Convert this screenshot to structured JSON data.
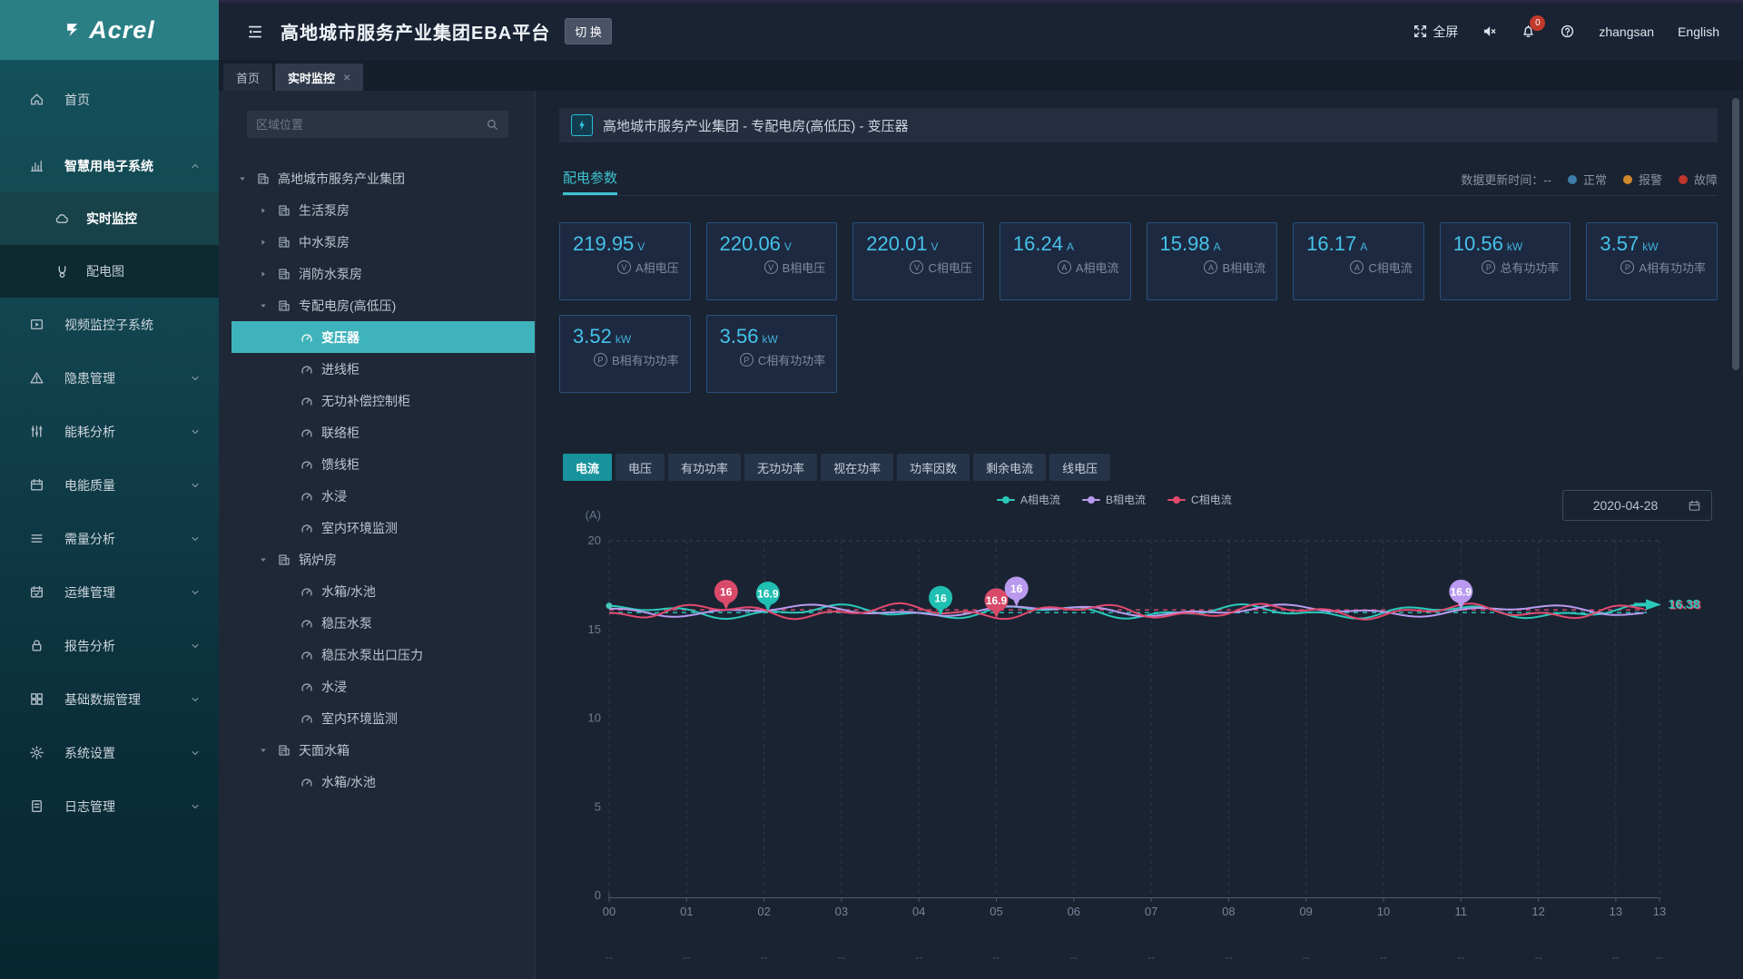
{
  "header": {
    "logo": "Acrel",
    "title": "高地城市服务产业集团EBA平台",
    "switch_button": "切 换",
    "fullscreen_label": "全屏",
    "notification_count": "0",
    "username": "zhangsan",
    "language": "English"
  },
  "top_tabs": [
    {
      "label": "首页",
      "active": false,
      "closable": false
    },
    {
      "label": "实时监控",
      "active": true,
      "closable": true
    }
  ],
  "sidebar": {
    "items": [
      {
        "label": "首页",
        "icon": "home-icon"
      },
      {
        "label": "智慧用电子系统",
        "icon": "chart-icon",
        "expanded": true,
        "children": [
          {
            "label": "实时监控",
            "icon": "cloud-icon",
            "selected": true
          },
          {
            "label": "配电图",
            "icon": "branch-icon",
            "selected": false
          }
        ]
      },
      {
        "label": "视频监控子系统",
        "icon": "video-icon"
      },
      {
        "label": "隐患管理",
        "icon": "warning-icon",
        "chevron": "down"
      },
      {
        "label": "能耗分析",
        "icon": "sliders-icon",
        "chevron": "down"
      },
      {
        "label": "电能质量",
        "icon": "calendar-icon",
        "chevron": "down"
      },
      {
        "label": "需量分析",
        "icon": "list-icon",
        "chevron": "down"
      },
      {
        "label": "运维管理",
        "icon": "calendar2-icon",
        "chevron": "down"
      },
      {
        "label": "报告分析",
        "icon": "lock-icon",
        "chevron": "down"
      },
      {
        "label": "基础数据管理",
        "icon": "grid-icon",
        "chevron": "down"
      },
      {
        "label": "系统设置",
        "icon": "gear-icon",
        "chevron": "down"
      },
      {
        "label": "日志管理",
        "icon": "doc-icon",
        "chevron": "down"
      }
    ]
  },
  "tree_panel": {
    "search_placeholder": "区域位置",
    "nodes": [
      {
        "level": 0,
        "toggle": "expanded",
        "icon": "building-icon",
        "label": "高地城市服务产业集团",
        "selected": false
      },
      {
        "level": 1,
        "toggle": "collapsed",
        "icon": "building-icon",
        "label": "生活泵房",
        "selected": false
      },
      {
        "level": 1,
        "toggle": "collapsed",
        "icon": "building-icon",
        "label": "中水泵房",
        "selected": false
      },
      {
        "level": 1,
        "toggle": "collapsed",
        "icon": "building-icon",
        "label": "消防水泵房",
        "selected": false
      },
      {
        "level": 1,
        "toggle": "expanded",
        "icon": "building-icon",
        "label": "专配电房(高低压)",
        "selected": false
      },
      {
        "level": 2,
        "toggle": null,
        "icon": "gauge-icon",
        "label": "变压器",
        "selected": true
      },
      {
        "level": 2,
        "toggle": null,
        "icon": "gauge-icon",
        "label": "进线柜",
        "selected": false
      },
      {
        "level": 2,
        "toggle": null,
        "icon": "gauge-icon",
        "label": "无功补偿控制柜",
        "selected": false
      },
      {
        "level": 2,
        "toggle": null,
        "icon": "gauge-icon",
        "label": "联络柜",
        "selected": false
      },
      {
        "level": 2,
        "toggle": null,
        "icon": "gauge-icon",
        "label": "馈线柜",
        "selected": false
      },
      {
        "level": 2,
        "toggle": null,
        "icon": "gauge-icon",
        "label": "水浸",
        "selected": false
      },
      {
        "level": 2,
        "toggle": null,
        "icon": "gauge-icon",
        "label": "室内环境监测",
        "selected": false
      },
      {
        "level": 1,
        "toggle": "expanded",
        "icon": "building-icon",
        "label": "锅炉房",
        "selected": false
      },
      {
        "level": 2,
        "toggle": null,
        "icon": "gauge-icon",
        "label": "水箱/水池",
        "selected": false
      },
      {
        "level": 2,
        "toggle": null,
        "icon": "gauge-icon",
        "label": "稳压水泵",
        "selected": false
      },
      {
        "level": 2,
        "toggle": null,
        "icon": "gauge-icon",
        "label": "稳压水泵出口压力",
        "selected": false
      },
      {
        "level": 2,
        "toggle": null,
        "icon": "gauge-icon",
        "label": "水浸",
        "selected": false
      },
      {
        "level": 2,
        "toggle": null,
        "icon": "gauge-icon",
        "label": "室内环境监测",
        "selected": false
      },
      {
        "level": 1,
        "toggle": "expanded",
        "icon": "building-icon",
        "label": "天面水箱",
        "selected": false
      },
      {
        "level": 2,
        "toggle": null,
        "icon": "gauge-icon",
        "label": "水箱/水池",
        "selected": false
      }
    ]
  },
  "main": {
    "breadcrumb": "高地城市服务产业集团 - 专配电房(高低压) - 变压器",
    "section_tab": "配电参数",
    "update_time": "数据更新时间：--",
    "status_legend": [
      {
        "label": "正常",
        "color": "#3e7fa9"
      },
      {
        "label": "报警",
        "color": "#d0882a"
      },
      {
        "label": "故障",
        "color": "#c13529"
      }
    ],
    "cards": [
      {
        "value": "219.95",
        "unit": "V",
        "icon_letter": "V",
        "label": "A相电压"
      },
      {
        "value": "220.06",
        "unit": "V",
        "icon_letter": "V",
        "label": "B相电压"
      },
      {
        "value": "220.01",
        "unit": "V",
        "icon_letter": "V",
        "label": "C相电压"
      },
      {
        "value": "16.24",
        "unit": "A",
        "icon_letter": "A",
        "label": "A相电流"
      },
      {
        "value": "15.98",
        "unit": "A",
        "icon_letter": "A",
        "label": "B相电流"
      },
      {
        "value": "16.17",
        "unit": "A",
        "icon_letter": "A",
        "label": "C相电流"
      },
      {
        "value": "10.56",
        "unit": "kW",
        "icon_letter": "P",
        "label": "总有功功率"
      },
      {
        "value": "3.57",
        "unit": "kW",
        "icon_letter": "P",
        "label": "A相有功功率"
      },
      {
        "value": "3.52",
        "unit": "kW",
        "icon_letter": "P",
        "label": "B相有功功率"
      },
      {
        "value": "3.56",
        "unit": "kW",
        "icon_letter": "P",
        "label": "C相有功功率"
      }
    ],
    "chart_tabs": [
      {
        "label": "电流",
        "active": true
      },
      {
        "label": "电压",
        "active": false
      },
      {
        "label": "有功功率",
        "active": false
      },
      {
        "label": "无功功率",
        "active": false
      },
      {
        "label": "视在功率",
        "active": false
      },
      {
        "label": "功率因数",
        "active": false
      },
      {
        "label": "剩余电流",
        "active": false
      },
      {
        "label": "线电压",
        "active": false
      }
    ],
    "date": "2020-04-28"
  },
  "chart_data": {
    "type": "line",
    "title": "",
    "ylabel": "(A)",
    "ylim": [
      0,
      20
    ],
    "yticks": [
      0,
      5,
      10,
      15,
      20
    ],
    "x_ticks": [
      "00",
      "01",
      "02",
      "03",
      "04",
      "05",
      "06",
      "07",
      "08",
      "09",
      "10",
      "11",
      "12",
      "13"
    ],
    "x_edge_tick": "13",
    "x_subtick_text": "--",
    "grid": "dashed",
    "legend_position": "top-center",
    "series": [
      {
        "name": "A相电流",
        "color": "#2bc9bb",
        "base": 16.0,
        "shape": {
          "a1": 0.26,
          "f1": 2.4,
          "p1": 0.8,
          "a2": 0.16,
          "f2": 6.1,
          "p2": 2.0
        },
        "end_value": "16.38",
        "avg": 15.95
      },
      {
        "name": "B相电流",
        "color": "#b89bee",
        "base": 16.06,
        "shape": {
          "a1": 0.22,
          "f1": 2.0,
          "p1": 2.9,
          "a2": 0.13,
          "f2": 5.2,
          "p2": 0.4
        }
      },
      {
        "name": "C相电流",
        "color": "#e14a6e",
        "base": 16.02,
        "shape": {
          "a1": 0.28,
          "f1": 2.6,
          "p1": 4.4,
          "a2": 0.18,
          "f2": 6.8,
          "p2": 1.2
        },
        "avg": 16.1
      }
    ],
    "markers": [
      {
        "series": "C相电流",
        "x": 1.51,
        "value": "16",
        "color": "#d94a6a"
      },
      {
        "series": "A相电流",
        "x": 2.05,
        "value": "16.9",
        "color": "#1fbfb2"
      },
      {
        "series": "A相电流",
        "x": 4.28,
        "value": "16",
        "color": "#1fbfb2"
      },
      {
        "series": "C相电流",
        "x": 5.0,
        "value": "16.9",
        "color": "#d94a6a"
      },
      {
        "series": "B相电流",
        "x": 5.26,
        "value": "16",
        "color": "#b99aef"
      },
      {
        "series": "B相电流",
        "x": 11.0,
        "value": "16.9",
        "color": "#b99aef"
      }
    ],
    "end_label": "16.38"
  }
}
